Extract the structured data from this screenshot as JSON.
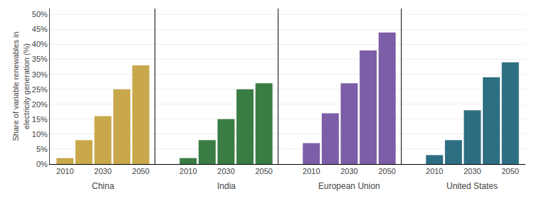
{
  "chart_data": {
    "type": "bar",
    "categories": [
      "2010",
      null,
      "2030",
      null,
      "2050"
    ],
    "series": [
      {
        "name": "China",
        "color": "#C8A84B",
        "values": [
          2,
          8,
          16,
          25,
          33
        ]
      },
      {
        "name": "India",
        "color": "#3A7D44",
        "values": [
          2,
          8,
          15,
          25,
          27
        ]
      },
      {
        "name": "European Union",
        "color": "#7B5EA7",
        "values": [
          7,
          17,
          27,
          38,
          44
        ]
      },
      {
        "name": "United States",
        "color": "#2E6E82",
        "values": [
          3,
          8,
          18,
          29,
          34
        ]
      }
    ],
    "ylabel": "Share of variable renewables in\nelectricity generation (%)",
    "ylim": [
      0,
      52
    ],
    "yticks": [
      {
        "value": 0,
        "label": "0%"
      },
      {
        "value": 5,
        "label": "5%"
      },
      {
        "value": 10,
        "label": "10%"
      },
      {
        "value": 15,
        "label": "15%"
      },
      {
        "value": 20,
        "label": "20%"
      },
      {
        "value": 25,
        "label": "25%"
      },
      {
        "value": 30,
        "label": "30%"
      },
      {
        "value": 35,
        "label": "35%"
      },
      {
        "value": 40,
        "label": "40%"
      },
      {
        "value": 45,
        "label": "45%"
      },
      {
        "value": 50,
        "label": "50%"
      }
    ],
    "grid": true
  }
}
